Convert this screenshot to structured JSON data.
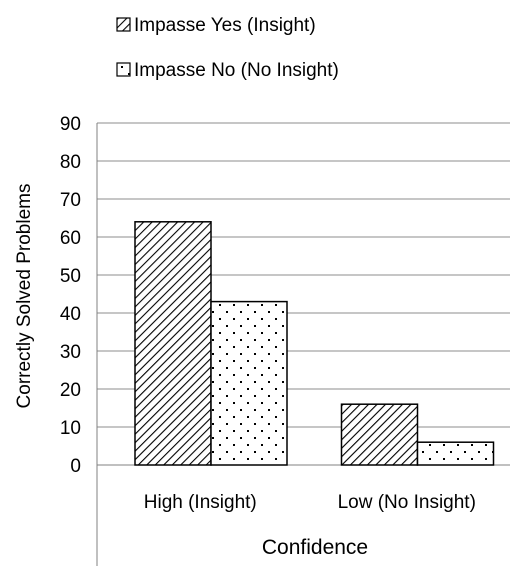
{
  "chart_data": {
    "type": "bar",
    "categories": [
      "High (Insight)",
      "Low (No Insight)"
    ],
    "series": [
      {
        "name": "Impasse Yes (Insight)",
        "values": [
          64,
          16
        ],
        "pattern": "diagonal-hatch"
      },
      {
        "name": "Impasse No (No Insight)",
        "values": [
          43,
          6
        ],
        "pattern": "sparse-dots"
      }
    ],
    "xlabel": "Confidence",
    "ylabel": "Correctly Solved Problems",
    "ylim": [
      0,
      90
    ],
    "yticks": [
      0,
      10,
      20,
      30,
      40,
      50,
      60,
      70,
      80,
      90
    ],
    "grid": true,
    "legend_position": "top-left",
    "colors": {
      "bar_outline": "#000000",
      "gridline": "#8c8c8c",
      "axis": "#808080",
      "background": "#ffffff"
    }
  }
}
